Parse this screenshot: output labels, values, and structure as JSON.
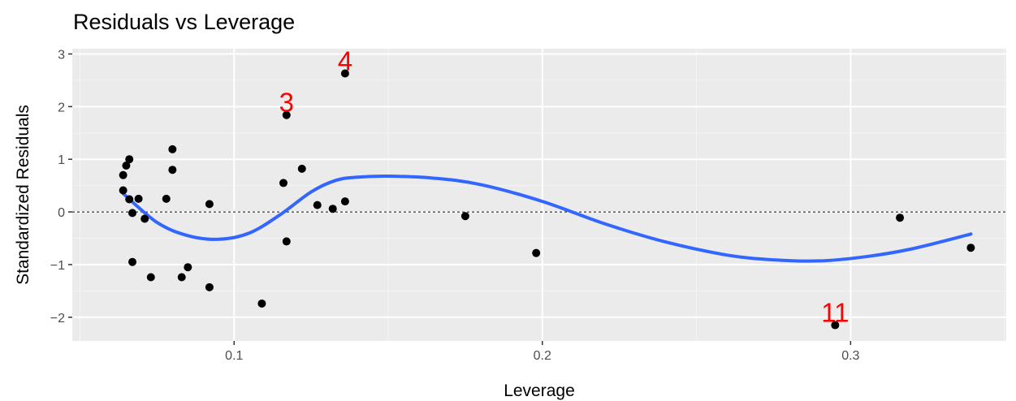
{
  "chart_data": {
    "type": "scatter",
    "title": "Residuals vs Leverage",
    "xlabel": "Leverage",
    "ylabel": "Standardized Residuals",
    "xlim": [
      0.0475,
      0.3505
    ],
    "ylim": [
      -2.45,
      3.1
    ],
    "x_ticks": [
      0.1,
      0.2,
      0.3
    ],
    "x_tick_labels": [
      "0.1",
      "0.2",
      "0.3"
    ],
    "y_ticks": [
      -2,
      -1,
      0,
      1,
      2,
      3
    ],
    "y_tick_labels": [
      "−2",
      "−1",
      "0",
      "1",
      "2",
      "3"
    ],
    "grid": true,
    "reference_line_y": 0,
    "points": [
      {
        "x": 0.064,
        "y": 0.7
      },
      {
        "x": 0.064,
        "y": 0.41
      },
      {
        "x": 0.065,
        "y": 0.88
      },
      {
        "x": 0.066,
        "y": 1.0
      },
      {
        "x": 0.066,
        "y": 0.24
      },
      {
        "x": 0.067,
        "y": -0.95
      },
      {
        "x": 0.067,
        "y": -0.02
      },
      {
        "x": 0.069,
        "y": 0.25
      },
      {
        "x": 0.071,
        "y": -0.13
      },
      {
        "x": 0.073,
        "y": -1.24
      },
      {
        "x": 0.078,
        "y": 0.25
      },
      {
        "x": 0.08,
        "y": 1.19
      },
      {
        "x": 0.08,
        "y": 0.8
      },
      {
        "x": 0.083,
        "y": -1.24
      },
      {
        "x": 0.085,
        "y": -1.05
      },
      {
        "x": 0.092,
        "y": 0.15
      },
      {
        "x": 0.092,
        "y": -1.43
      },
      {
        "x": 0.109,
        "y": -1.74
      },
      {
        "x": 0.116,
        "y": 0.55
      },
      {
        "x": 0.117,
        "y": 1.84
      },
      {
        "x": 0.117,
        "y": -0.56
      },
      {
        "x": 0.122,
        "y": 0.82
      },
      {
        "x": 0.127,
        "y": 0.13
      },
      {
        "x": 0.132,
        "y": 0.06
      },
      {
        "x": 0.136,
        "y": 2.63
      },
      {
        "x": 0.136,
        "y": 0.2
      },
      {
        "x": 0.175,
        "y": -0.08
      },
      {
        "x": 0.198,
        "y": -0.78
      },
      {
        "x": 0.295,
        "y": -2.15
      },
      {
        "x": 0.316,
        "y": -0.11
      },
      {
        "x": 0.339,
        "y": -0.68
      }
    ],
    "point_labels": [
      {
        "text": "4",
        "x": 0.136,
        "y": 2.63
      },
      {
        "text": "3",
        "x": 0.117,
        "y": 1.84
      },
      {
        "text": "11",
        "x": 0.295,
        "y": -2.15
      }
    ],
    "smooth_line": {
      "x": [
        0.064,
        0.075,
        0.085,
        0.095,
        0.105,
        0.115,
        0.125,
        0.133,
        0.14,
        0.15,
        0.165,
        0.18,
        0.2,
        0.22,
        0.24,
        0.26,
        0.275,
        0.29,
        0.305,
        0.32,
        0.339
      ],
      "y": [
        0.35,
        -0.2,
        -0.45,
        -0.52,
        -0.4,
        -0.05,
        0.38,
        0.6,
        0.66,
        0.68,
        0.64,
        0.52,
        0.2,
        -0.22,
        -0.57,
        -0.82,
        -0.91,
        -0.93,
        -0.85,
        -0.7,
        -0.42
      ]
    },
    "colors": {
      "panel": "#ebebeb",
      "grid_major": "#ffffff",
      "grid_minor": "#f4f4f4",
      "point": "#000000",
      "smooth": "#3366ff",
      "label": "#ff0000",
      "zero_line": "#000000"
    }
  }
}
